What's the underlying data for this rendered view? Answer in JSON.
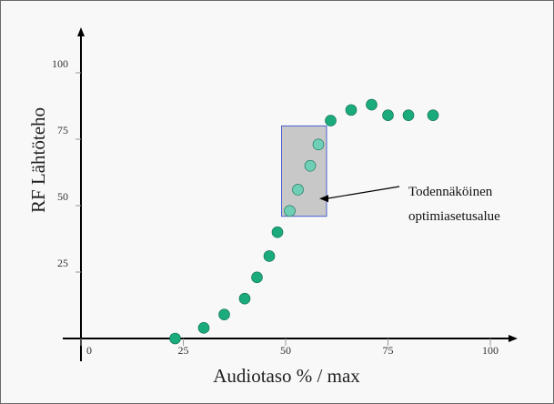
{
  "chart_data": {
    "type": "scatter",
    "title": "",
    "xlabel": "Audiotaso %  / max",
    "ylabel": "RF  Lähtöteho",
    "xlim": [
      0,
      100
    ],
    "ylim": [
      0,
      100
    ],
    "x_ticks": [
      "0",
      "25",
      "50",
      "75",
      "100"
    ],
    "y_ticks": [
      "25",
      "50",
      "75",
      "100"
    ],
    "grid": false,
    "colors": {
      "point": "#1aaa7c",
      "point_in_region": "#6fcfb6",
      "region_fill": "#c8c8c8",
      "region_border": "#4a5fd0",
      "axis": "#000000"
    },
    "points": [
      {
        "x": 23,
        "y": 0
      },
      {
        "x": 30,
        "y": 4
      },
      {
        "x": 35,
        "y": 9
      },
      {
        "x": 40,
        "y": 15
      },
      {
        "x": 43,
        "y": 23
      },
      {
        "x": 46,
        "y": 31
      },
      {
        "x": 48,
        "y": 40
      },
      {
        "x": 51,
        "y": 48
      },
      {
        "x": 53,
        "y": 56
      },
      {
        "x": 56,
        "y": 65
      },
      {
        "x": 58,
        "y": 73
      },
      {
        "x": 61,
        "y": 82
      },
      {
        "x": 66,
        "y": 86
      },
      {
        "x": 71,
        "y": 88
      },
      {
        "x": 75,
        "y": 84
      },
      {
        "x": 80,
        "y": 84
      },
      {
        "x": 86,
        "y": 84
      }
    ],
    "region": {
      "x0": 49,
      "x1": 60,
      "y0": 46,
      "y1": 80
    },
    "annotation": {
      "lines": [
        "Todennäköinen",
        "optimiasetusalue"
      ],
      "points_to": {
        "x": 60,
        "y": 53
      }
    }
  }
}
